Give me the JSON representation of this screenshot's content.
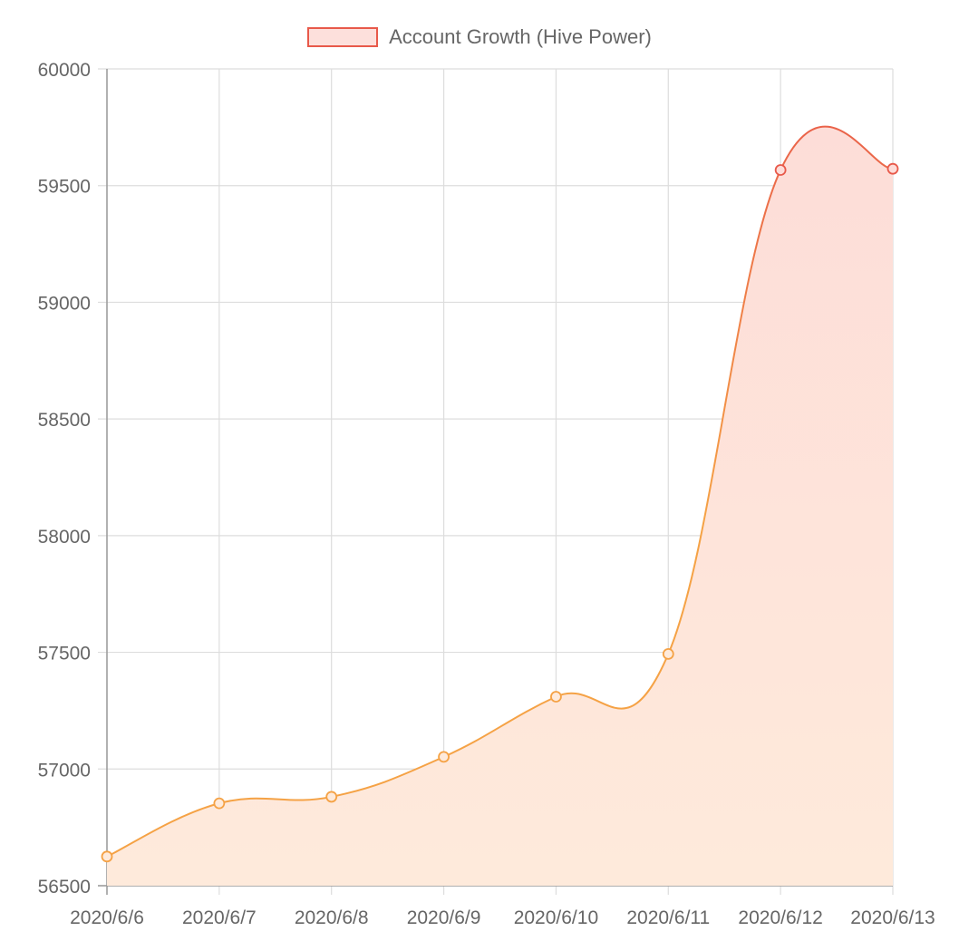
{
  "chart_data": {
    "type": "area",
    "title": "",
    "xlabel": "",
    "ylabel": "",
    "x": [
      "2020/6/6",
      "2020/6/7",
      "2020/6/8",
      "2020/6/9",
      "2020/6/10",
      "2020/6/11",
      "2020/6/12",
      "2020/6/13"
    ],
    "series": [
      {
        "name": "Account Growth (Hive Power)",
        "values": [
          56625,
          56853,
          56881,
          57052,
          57310,
          57493,
          59567,
          59572
        ]
      }
    ],
    "ylim": [
      56500,
      60000
    ],
    "yticks": [
      "60000",
      "59500",
      "59000",
      "58500",
      "58000",
      "57500",
      "57000",
      "56500"
    ],
    "grid": true,
    "legend_position": "top-center",
    "colors": {
      "line_low": "#f5a245",
      "line_high": "#e8594a",
      "fill_low": "#feeadb",
      "fill_high": "#fddcd8",
      "legend_border": "#e8594a",
      "legend_fill": "#fde0dc",
      "grid": "#dddddd",
      "axis": "#999999",
      "text": "#666666"
    }
  }
}
